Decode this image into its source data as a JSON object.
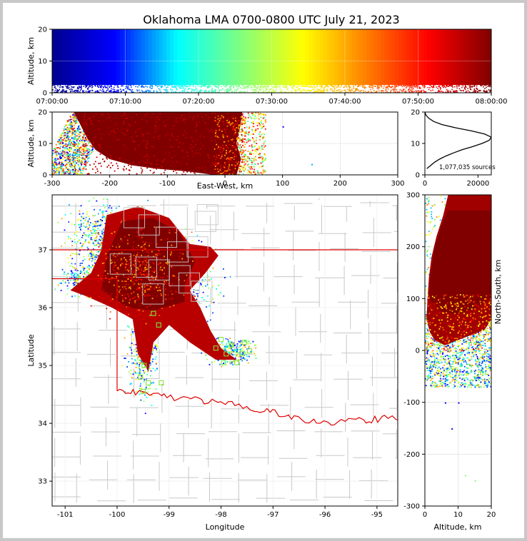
{
  "chart_data": [
    {
      "type": "scatter",
      "panel": "time-altitude",
      "title": "Oklahoma LMA 0700-0800 UTC July 21, 2023",
      "xlabel": "",
      "ylabel": "Altitude, km",
      "x_ticks": [
        "07:00:00",
        "07:10:00",
        "07:20:00",
        "07:30:00",
        "07:40:00",
        "07:50:00",
        "08:00:00"
      ],
      "xlim_minutes": [
        0,
        60
      ],
      "ylim": [
        0,
        20
      ],
      "y_ticks": [
        0,
        10,
        20
      ],
      "color_by": "time",
      "colormap": [
        "#00008f",
        "#0000ff",
        "#00ffff",
        "#80ff80",
        "#ffff00",
        "#ff8000",
        "#ff0000",
        "#800000"
      ],
      "grid": true
    },
    {
      "type": "scatter",
      "panel": "east-west-altitude",
      "xlabel": "East-West, km",
      "ylabel": "Altitude, km",
      "xlim": [
        -300,
        300
      ],
      "x_ticks": [
        -300,
        -200,
        -100,
        0,
        100,
        200,
        300
      ],
      "ylim": [
        0,
        20
      ],
      "y_ticks": [
        0,
        10,
        20
      ],
      "grid": true
    },
    {
      "type": "line",
      "panel": "altitude-histogram",
      "xlim": [
        0,
        25000
      ],
      "x_ticks": [
        0,
        20000
      ],
      "ylim": [
        0,
        20
      ],
      "y_ticks": [
        0,
        10,
        20
      ],
      "annotation": "1,077,035 sources",
      "profile": {
        "altitude": [
          2,
          3,
          4,
          5,
          6,
          7,
          8,
          9,
          10,
          11,
          12,
          13,
          14,
          15,
          16,
          17,
          18,
          19,
          20
        ],
        "count": [
          700,
          2200,
          3600,
          5500,
          7900,
          10800,
          14000,
          18000,
          21500,
          24200,
          25000,
          22500,
          17500,
          11500,
          6500,
          3300,
          1500,
          400,
          0
        ]
      }
    },
    {
      "type": "scatter",
      "panel": "plan-view",
      "xlabel": "Longitude",
      "ylabel": "Latitude",
      "xlim": [
        -101.25,
        -94.6
      ],
      "ylim": [
        32.57,
        37.95
      ],
      "x_ticks": [
        -101,
        -100,
        -99,
        -98,
        -97,
        -96,
        -95
      ],
      "y_ticks": [
        33,
        34,
        35,
        36,
        37
      ],
      "grid": true,
      "state_border_color": "#e00000",
      "county_line_color": "#c8c8c8",
      "station_marker_color": "#80e840"
    },
    {
      "type": "scatter",
      "panel": "altitude-north-south",
      "xlabel": "Altitude, km",
      "ylabel": "North-South, km",
      "xlim": [
        0,
        20
      ],
      "x_ticks": [
        0,
        10,
        20
      ],
      "ylim": [
        -300,
        300
      ],
      "y_ticks": [
        -300,
        -200,
        -100,
        0,
        100,
        200,
        300
      ],
      "grid": true
    }
  ]
}
